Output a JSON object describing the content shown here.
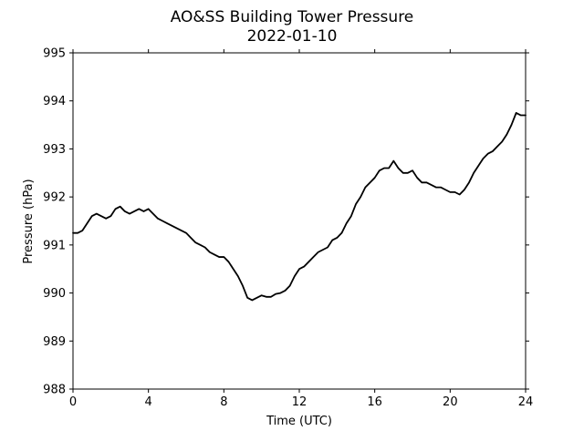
{
  "chart_data": {
    "type": "line",
    "title": "AO&SS Building Tower Pressure",
    "subtitle": "2022-01-10",
    "xlabel": "Time (UTC)",
    "ylabel": "Pressure (hPa)",
    "xlim": [
      0,
      24
    ],
    "ylim": [
      988,
      995
    ],
    "xticks": [
      0,
      4,
      8,
      12,
      16,
      20,
      24
    ],
    "yticks": [
      988,
      989,
      990,
      991,
      992,
      993,
      994,
      995
    ],
    "grid": false,
    "line_color": "#000000",
    "series": [
      {
        "x": [
          0,
          0.25,
          0.5,
          0.75,
          1,
          1.25,
          1.5,
          1.75,
          2,
          2.25,
          2.5,
          2.75,
          3,
          3.25,
          3.5,
          3.75,
          4,
          4.25,
          4.5,
          4.75,
          5,
          5.25,
          5.5,
          5.75,
          6,
          6.25,
          6.5,
          6.75,
          7,
          7.25,
          7.5,
          7.75,
          8,
          8.25,
          8.5,
          8.75,
          9,
          9.25,
          9.5,
          9.75,
          10,
          10.25,
          10.5,
          10.75,
          11,
          11.25,
          11.5,
          11.75,
          12,
          12.25,
          12.5,
          12.75,
          13,
          13.25,
          13.5,
          13.75,
          14,
          14.25,
          14.5,
          14.75,
          15,
          15.25,
          15.5,
          15.75,
          16,
          16.25,
          16.5,
          16.75,
          17,
          17.25,
          17.5,
          17.75,
          18,
          18.25,
          18.5,
          18.75,
          19,
          19.25,
          19.5,
          19.75,
          20,
          20.25,
          20.5,
          20.75,
          21,
          21.25,
          21.5,
          21.75,
          22,
          22.25,
          22.5,
          22.75,
          23,
          23.25,
          23.5,
          23.75,
          24
        ],
        "values": [
          991.25,
          991.25,
          991.3,
          991.45,
          991.6,
          991.65,
          991.6,
          991.55,
          991.6,
          991.75,
          991.8,
          991.7,
          991.65,
          991.7,
          991.75,
          991.7,
          991.75,
          991.65,
          991.55,
          991.5,
          991.45,
          991.4,
          991.35,
          991.3,
          991.25,
          991.15,
          991.05,
          991.0,
          990.95,
          990.85,
          990.8,
          990.75,
          990.75,
          990.65,
          990.5,
          990.35,
          990.15,
          989.9,
          989.85,
          989.9,
          989.95,
          989.92,
          989.92,
          989.98,
          990.0,
          990.05,
          990.15,
          990.35,
          990.5,
          990.55,
          990.65,
          990.75,
          990.85,
          990.9,
          990.95,
          991.1,
          991.15,
          991.25,
          991.45,
          991.6,
          991.85,
          992.0,
          992.2,
          992.3,
          992.4,
          992.55,
          992.6,
          992.6,
          992.75,
          992.6,
          992.5,
          992.5,
          992.55,
          992.4,
          992.3,
          992.3,
          992.25,
          992.2,
          992.2,
          992.15,
          992.1,
          992.1,
          992.05,
          992.15,
          992.3,
          992.5,
          992.65,
          992.8,
          992.9,
          992.95,
          993.05,
          993.15,
          993.3,
          993.5,
          993.75,
          993.7,
          993.7
        ]
      }
    ]
  }
}
